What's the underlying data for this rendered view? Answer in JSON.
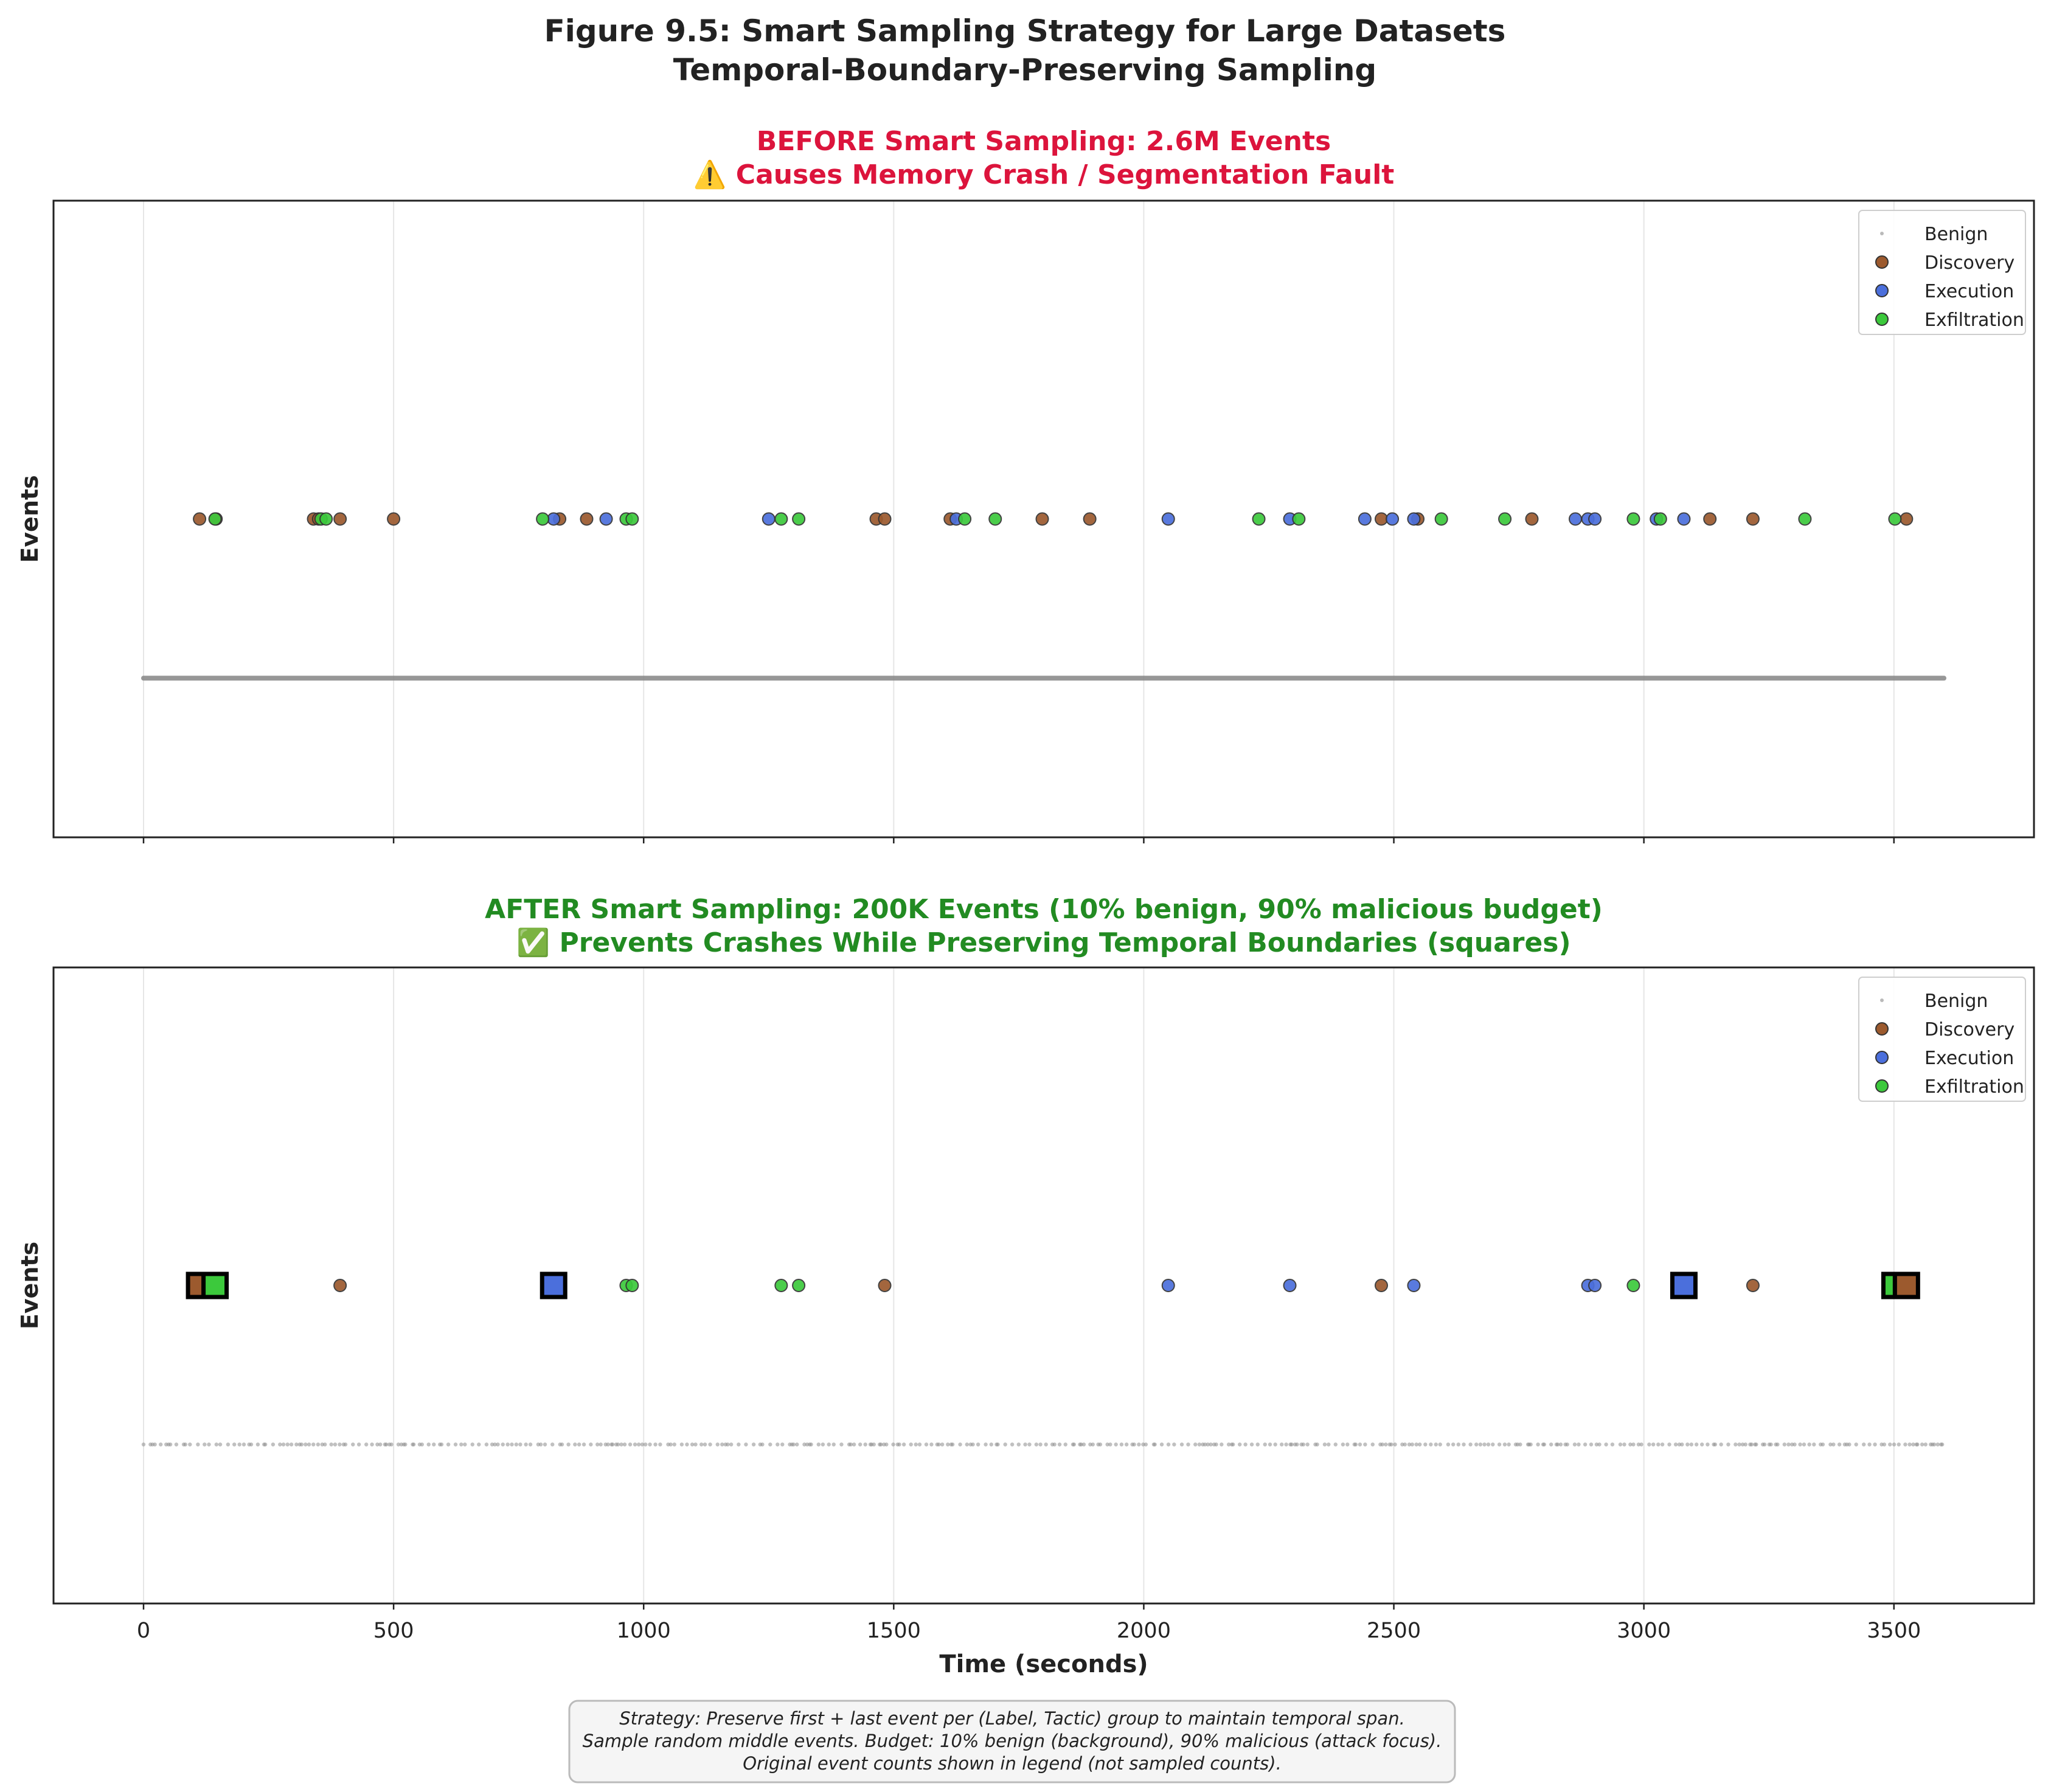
{
  "figure": {
    "title_line1": "Figure 9.5: Smart Sampling Strategy for Large Datasets",
    "title_line2": "Temporal-Boundary-Preserving Sampling",
    "footnote_lines": [
      "Strategy: Preserve first + last event per (Label, Tactic) group to maintain temporal span.",
      "Sample random middle events. Budget: 10% benign (background), 90% malicious (attack focus).",
      "Original event counts shown in legend (not sampled counts)."
    ]
  },
  "colors": {
    "benign": "#8c8c8c",
    "discovery": "#9c5a2e",
    "execution": "#4b6fdc",
    "exfiltration": "#3cc93c",
    "before_title": "#dc143c",
    "after_title": "#228b22"
  },
  "chart_data": [
    {
      "type": "scatter",
      "title_line1": "BEFORE Smart Sampling: 2.6M Events",
      "title_line2": "⚠️ Causes Memory Crash / Segmentation Fault",
      "xlabel": "",
      "ylabel": "Events",
      "xlim": [
        -180,
        3780
      ],
      "ylim": [
        -1.0,
        1.0
      ],
      "xticks": [
        0,
        500,
        1000,
        1500,
        2000,
        2500,
        3000,
        3500
      ],
      "show_xtick_labels": false,
      "grid": "vertical",
      "legend": [
        "Benign",
        "Discovery",
        "Execution",
        "Exfiltration"
      ],
      "legend_position": "top-right",
      "benign_row": {
        "y": -0.5,
        "x_range": [
          0,
          3600
        ],
        "dense": true
      },
      "attack_row_y": 0.0,
      "series": [
        {
          "name": "Discovery",
          "x": [
            112,
            145,
            340,
            350,
            393,
            500,
            832,
            886,
            1465,
            1482,
            1613,
            1797,
            1892,
            2475,
            2548,
            2776,
            3132,
            3218,
            3525
          ]
        },
        {
          "name": "Execution",
          "x": [
            820,
            925,
            1250,
            1625,
            2049,
            2292,
            2442,
            2497,
            2540,
            2863,
            2888,
            2902,
            3025,
            3080
          ]
        },
        {
          "name": "Exfiltration",
          "x": [
            143,
            355,
            365,
            798,
            965,
            977,
            1275,
            1310,
            1642,
            1703,
            2230,
            2310,
            2595,
            2722,
            2979,
            3033,
            3322,
            3502
          ]
        }
      ],
      "boundary_squares": []
    },
    {
      "type": "scatter",
      "title_line1": "AFTER Smart Sampling: 200K Events (10% benign, 90% malicious budget)",
      "title_line2": "✅ Prevents Crashes While Preserving Temporal Boundaries (squares)",
      "xlabel": "Time (seconds)",
      "ylabel": "Events",
      "xlim": [
        -180,
        3780
      ],
      "ylim": [
        -1.0,
        1.0
      ],
      "xticks": [
        0,
        500,
        1000,
        1500,
        2000,
        2500,
        3000,
        3500
      ],
      "show_xtick_labels": true,
      "grid": "vertical",
      "legend": [
        "Benign",
        "Discovery",
        "Execution",
        "Exfiltration"
      ],
      "legend_position": "top-right",
      "benign_row": {
        "y": -0.5,
        "x_range": [
          0,
          3600
        ],
        "dense": false
      },
      "attack_row_y": 0.0,
      "series": [
        {
          "name": "Discovery",
          "x": [
            393,
            1482,
            2475,
            3218
          ]
        },
        {
          "name": "Execution",
          "x": [
            2049,
            2292,
            2540,
            2888,
            2902
          ]
        },
        {
          "name": "Exfiltration",
          "x": [
            965,
            977,
            1275,
            1310,
            2979
          ]
        }
      ],
      "boundary_squares": [
        {
          "series": "Discovery",
          "x": 112
        },
        {
          "series": "Exfiltration",
          "x": 143
        },
        {
          "series": "Execution",
          "x": 820
        },
        {
          "series": "Execution",
          "x": 3080
        },
        {
          "series": "Exfiltration",
          "x": 3502
        },
        {
          "series": "Discovery",
          "x": 3525
        }
      ]
    }
  ]
}
